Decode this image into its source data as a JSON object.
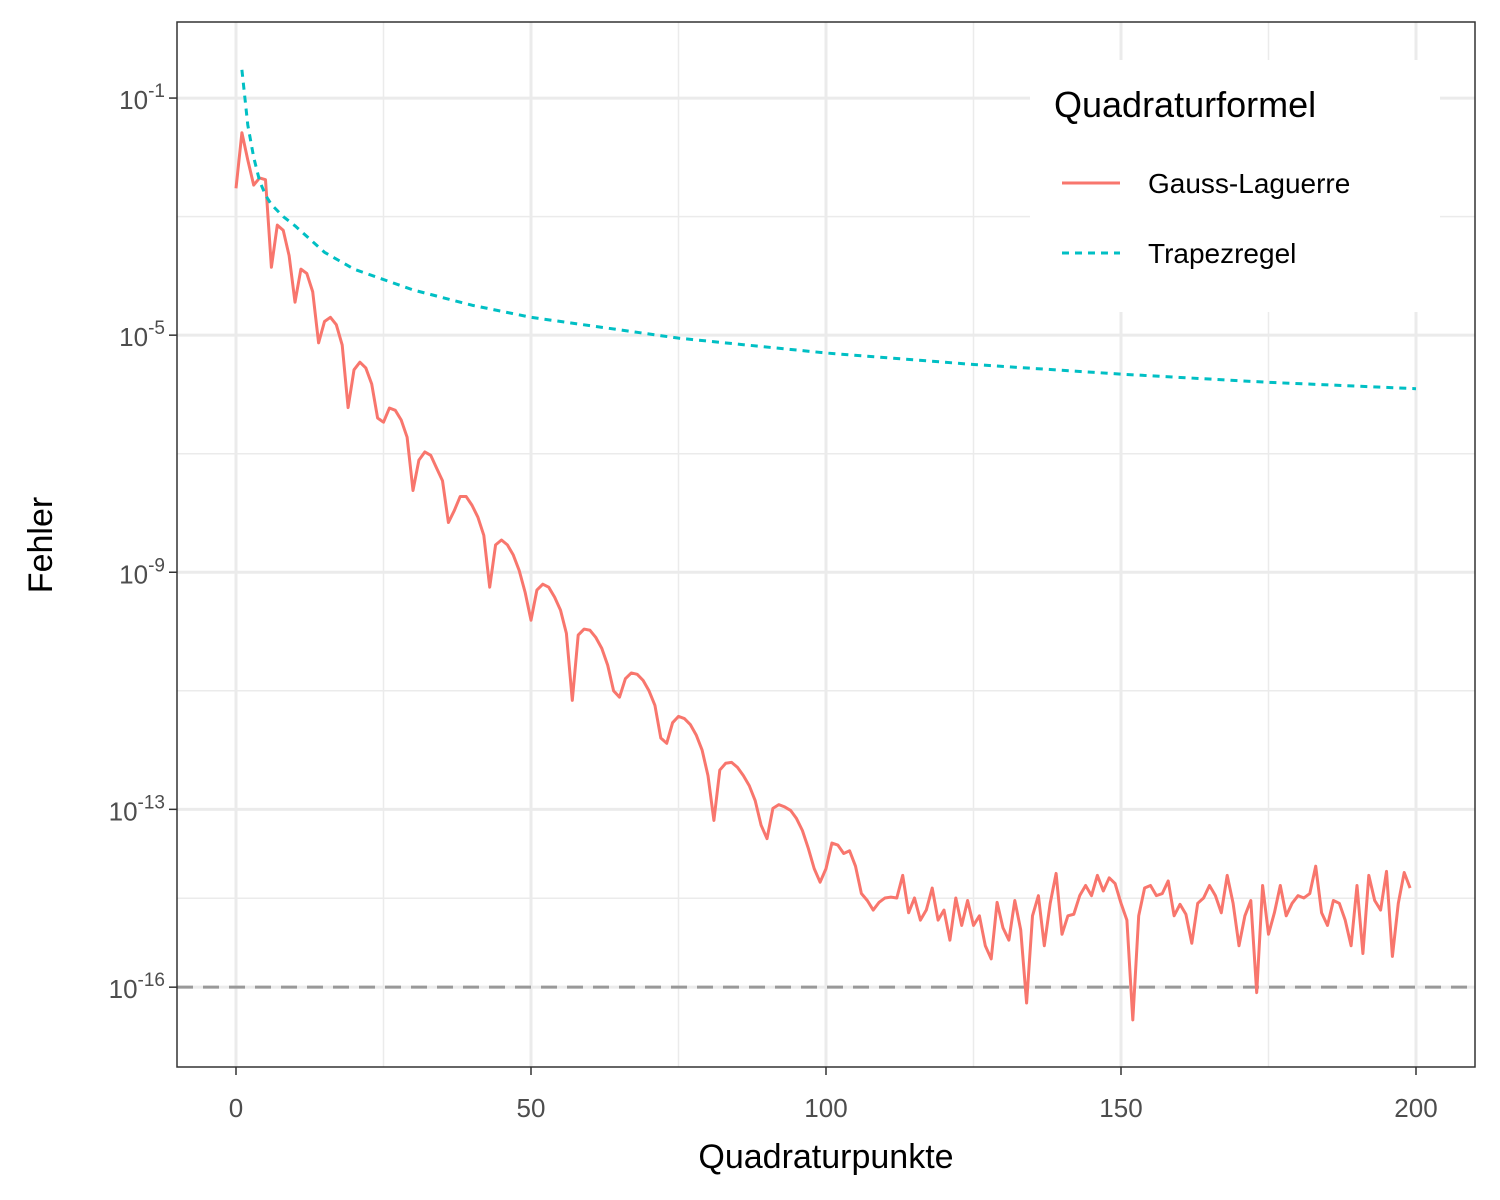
{
  "chart_data": {
    "type": "line",
    "x_label": "Quadraturpunkte",
    "y_label": "Fehler",
    "log_y": true,
    "grid": true,
    "xlim": [
      -10,
      210
    ],
    "ylim": [
      4.5e-18,
      1.92
    ],
    "xticks": [
      0,
      50,
      100,
      150,
      200
    ],
    "xminor": [
      25,
      75,
      125,
      175
    ],
    "yticks": [
      {
        "value": 0.1,
        "label": "10",
        "exponent": "-1"
      },
      {
        "value": 1e-05,
        "label": "10",
        "exponent": "-5"
      },
      {
        "value": 1e-09,
        "label": "10",
        "exponent": "-9"
      },
      {
        "value": 1e-13,
        "label": "10",
        "exponent": "-13"
      },
      {
        "value": 1e-16,
        "label": "10",
        "exponent": "-16"
      }
    ],
    "yminor": [
      0.001,
      1e-07,
      1e-11,
      3.16e-15
    ],
    "hline": {
      "value": 1e-16,
      "color": "#999999"
    },
    "legend": {
      "title": "Quadraturformel",
      "position": "top-right"
    },
    "series": [
      {
        "name": "Gauss-Laguerre",
        "color": "#F8766D",
        "style": "solid",
        "x": [
          0,
          1,
          2,
          3,
          4,
          5,
          6,
          7,
          8,
          9,
          10,
          11,
          12,
          13,
          14,
          15,
          16,
          17,
          18,
          19,
          20,
          21,
          22,
          23,
          24,
          25,
          26,
          27,
          28,
          29,
          30,
          31,
          32,
          33,
          34,
          35,
          36,
          37,
          38,
          39,
          40,
          41,
          42,
          43,
          44,
          45,
          46,
          47,
          48,
          49,
          50,
          51,
          52,
          53,
          54,
          55,
          56,
          57,
          58,
          59,
          60,
          61,
          62,
          63,
          64,
          65,
          66,
          67,
          68,
          69,
          70,
          71,
          72,
          73,
          74,
          75,
          76,
          77,
          78,
          79,
          80,
          81,
          82,
          83,
          84,
          85,
          86,
          87,
          88,
          89,
          90,
          91,
          92,
          93,
          94,
          95,
          96,
          97,
          98,
          99,
          100,
          101,
          102,
          103,
          104,
          105,
          106,
          107,
          108,
          109,
          110,
          111,
          112,
          113,
          114,
          115,
          116,
          117,
          118,
          119,
          120,
          121,
          122,
          123,
          124,
          125,
          126,
          127,
          128,
          129,
          130,
          131,
          132,
          133,
          134,
          135,
          136,
          137,
          138,
          139,
          140,
          141,
          142,
          143,
          144,
          145,
          146,
          147,
          148,
          149,
          150,
          151,
          152,
          153,
          154,
          155,
          156,
          157,
          158,
          159,
          160,
          161,
          162,
          163,
          164,
          165,
          166,
          167,
          168,
          169,
          170,
          171,
          172,
          173,
          174,
          175,
          176,
          177,
          178,
          179,
          180,
          181,
          182,
          183,
          184,
          185,
          186,
          187,
          188,
          189,
          190,
          191,
          192,
          193,
          194,
          195,
          196,
          197,
          198,
          199
        ],
        "values": [
          0.003,
          0.026,
          0.009,
          0.0034,
          0.0045,
          0.0042,
          0.00014,
          0.00072,
          0.00059,
          0.00022,
          3.6e-05,
          0.00013,
          0.00011,
          5.4e-05,
          7.4e-06,
          1.7e-05,
          2e-05,
          1.5e-05,
          6.8e-06,
          6e-07,
          2.6e-06,
          3.5e-06,
          2.8e-06,
          1.5e-06,
          4e-07,
          3.4e-07,
          5.9e-07,
          5.4e-07,
          3.7e-07,
          1.9e-07,
          2.4e-08,
          7.8e-08,
          1.07e-07,
          9.4e-08,
          5.7e-08,
          3.5e-08,
          6.9e-09,
          1.1e-08,
          1.9e-08,
          1.9e-08,
          1.35e-08,
          8.5e-09,
          4.2e-09,
          5.6e-10,
          2.9e-09,
          3.5e-09,
          2.9e-09,
          1.95e-09,
          1.07e-09,
          4.6e-10,
          1.55e-10,
          5e-10,
          6.3e-10,
          5.6e-10,
          3.8e-10,
          2.3e-10,
          9.3e-11,
          6.9e-12,
          8.7e-11,
          1.1e-10,
          1.05e-10,
          7.9e-11,
          5.2e-11,
          2.7e-11,
          1e-11,
          7.8e-12,
          1.6e-11,
          2e-11,
          1.9e-11,
          1.5e-11,
          1e-11,
          5.7e-12,
          1.6e-12,
          1.3e-12,
          2.9e-12,
          3.7e-12,
          3.4e-12,
          2.7e-12,
          1.8e-12,
          1e-12,
          3.7e-13,
          6.5e-14,
          4.6e-13,
          6e-13,
          6.2e-13,
          5.1e-13,
          3.7e-13,
          2.5e-13,
          1.4e-13,
          5.4e-14,
          3.2e-14,
          1.04e-13,
          1.2e-13,
          1.1e-13,
          9.6e-14,
          7e-14,
          4.4e-14,
          2.2e-14,
          1e-14,
          5.9e-15,
          1e-14,
          2.7e-14,
          2.5e-14,
          1.8e-14,
          2e-14,
          1.1e-14,
          3.8e-15,
          2.9e-15,
          2e-15,
          2.7e-15,
          3.2e-15,
          3.3e-15,
          3.2e-15,
          7.7e-15,
          1.8e-15,
          3.2e-15,
          1.35e-15,
          2e-15,
          4.7e-15,
          1.35e-15,
          2e-15,
          6.2e-16,
          3.2e-15,
          1.1e-15,
          2.9e-15,
          1.1e-15,
          1.6e-15,
          5e-16,
          3e-16,
          2.7e-15,
          1e-15,
          6.2e-16,
          2.9e-15,
          9.3e-16,
          5.4e-17,
          1.6e-15,
          3.5e-15,
          5e-16,
          2.6e-15,
          8.3e-15,
          7.8e-16,
          1.6e-15,
          1.7e-15,
          3.5e-15,
          5.2e-15,
          3.5e-15,
          7.7e-15,
          4.2e-15,
          7e-15,
          5.6e-15,
          2.6e-15,
          1.35e-15,
          2.8e-17,
          1.6e-15,
          4.7e-15,
          5.2e-15,
          3.5e-15,
          3.8e-15,
          6.2e-15,
          1.6e-15,
          2.5e-15,
          1.7e-15,
          5.5e-16,
          2.6e-15,
          3.2e-15,
          5.2e-15,
          3.5e-15,
          1.8e-15,
          7.7e-15,
          2.6e-15,
          5e-16,
          1.6e-15,
          2.9e-15,
          8.1e-17,
          5.2e-15,
          7.8e-16,
          1.8e-15,
          5.2e-15,
          1.6e-15,
          2.6e-15,
          3.5e-15,
          3.2e-15,
          3.8e-15,
          1.1e-14,
          1.8e-15,
          1.1e-15,
          2.9e-15,
          2.6e-15,
          1.35e-15,
          5e-16,
          5.2e-15,
          3.7e-16,
          7.7e-15,
          2.9e-15,
          2e-15,
          9e-15,
          3.3e-16,
          2.6e-15,
          8.6e-15,
          4.7e-15
        ]
      },
      {
        "name": "Trapezregel",
        "color": "#00BFC4",
        "style": "dotted",
        "x": [
          1,
          2,
          3,
          4,
          5,
          6,
          8,
          10,
          15,
          20,
          30,
          40,
          50,
          75,
          100,
          125,
          150,
          175,
          200
        ],
        "values": [
          0.3,
          0.035,
          0.01,
          0.004,
          0.0023,
          0.0016,
          0.001,
          0.0007,
          0.00025,
          0.00013,
          5.8e-05,
          3.2e-05,
          2e-05,
          8.9e-06,
          5e-06,
          3.2e-06,
          2.2e-06,
          1.6e-06,
          1.25e-06
        ]
      }
    ]
  }
}
